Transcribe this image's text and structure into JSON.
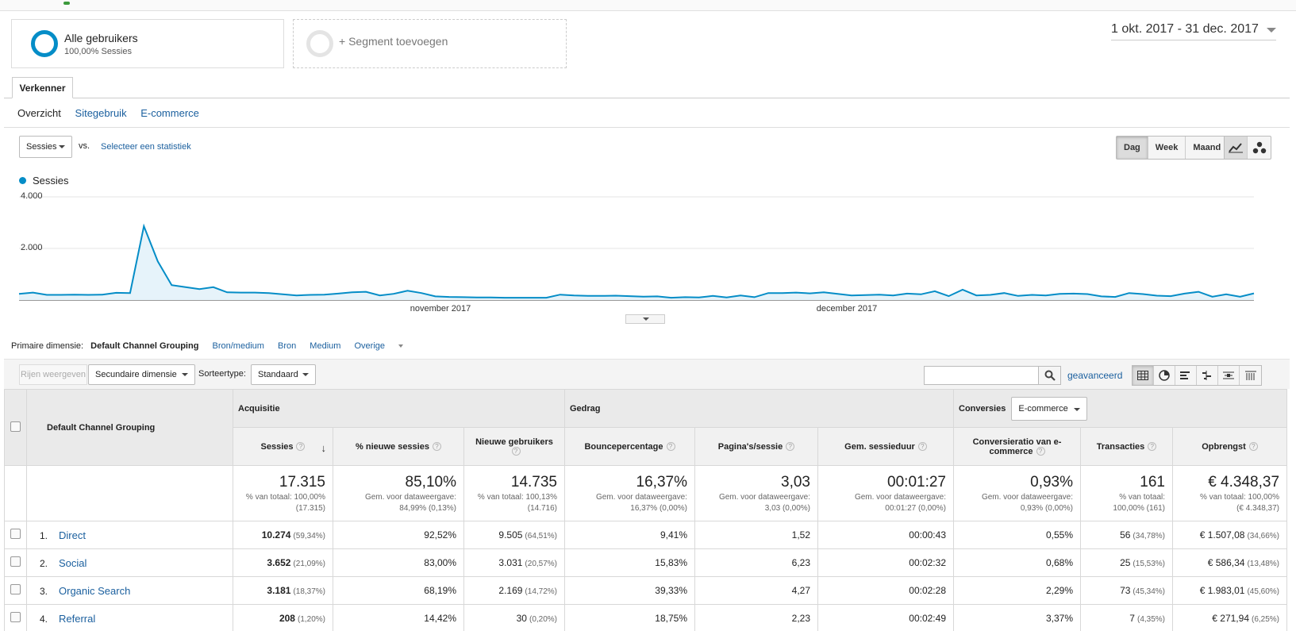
{
  "segments": {
    "current": {
      "title": "Alle gebruikers",
      "subtitle": "100,00% Sessies"
    },
    "add_label": "+ Segment toevoegen"
  },
  "date_range": "1 okt. 2017 - 31 dec. 2017",
  "tabs": {
    "explorer": "Verkenner",
    "subtabs": [
      "Overzicht",
      "Sitegebruik",
      "E-commerce"
    ]
  },
  "metric_picker": {
    "selected": "Sessies",
    "vs": "vs.",
    "second": "Selecteer een statistiek"
  },
  "granularity": [
    "Dag",
    "Week",
    "Maand"
  ],
  "chart_data": {
    "type": "area",
    "series": [
      {
        "name": "Sessies",
        "values": [
          240,
          290,
          200,
          200,
          210,
          200,
          210,
          280,
          270,
          2860,
          1500,
          580,
          500,
          420,
          500,
          300,
          290,
          290,
          270,
          220,
          180,
          200,
          210,
          250,
          300,
          320,
          180,
          240,
          360,
          270,
          140,
          120,
          110,
          100,
          100,
          90,
          90,
          90,
          90,
          210,
          180,
          160,
          160,
          170,
          150,
          130,
          140,
          90,
          110,
          100,
          160,
          100,
          180,
          110,
          270,
          270,
          290,
          260,
          300,
          240,
          180,
          190,
          210,
          180,
          250,
          220,
          340,
          150,
          400,
          180,
          200,
          270,
          160,
          200,
          180,
          240,
          250,
          230,
          140,
          120,
          270,
          230,
          170,
          150,
          250,
          320,
          130,
          220,
          130,
          260
        ]
      }
    ],
    "x_labels": [
      "november 2017",
      "december 2017"
    ],
    "y_ticks": [
      "4.000",
      "2.000"
    ],
    "ylim": [
      0,
      4000
    ]
  },
  "primary_dimension": {
    "label": "Primaire dimensie:",
    "options": [
      "Default Channel Grouping",
      "Bron/medium",
      "Bron",
      "Medium",
      "Overige"
    ]
  },
  "toolbar": {
    "show_rows": "Rijen weergeven",
    "secondary": "Secundaire dimensie",
    "sort_label": "Sorteertype:",
    "sort_value": "Standaard",
    "advanced": "geavanceerd"
  },
  "table": {
    "dim_header": "Default Channel Grouping",
    "groups": {
      "acq": "Acquisitie",
      "beh": "Gedrag",
      "conv": "Conversies",
      "conv_select": "E-commerce"
    },
    "columns": [
      "Sessies",
      "% nieuwe sessies",
      "Nieuwe gebruikers",
      "Bouncepercentage",
      "Pagina's/sessie",
      "Gem. sessieduur",
      "Conversieratio van e-commerce",
      "Transacties",
      "Opbrengst"
    ],
    "totals": [
      {
        "value": "17.315",
        "sub1": "% van totaal: 100,00%",
        "sub2": "(17.315)"
      },
      {
        "value": "85,10%",
        "sub1": "Gem. voor dataweergave:",
        "sub2": "84,99% (0,13%)"
      },
      {
        "value": "14.735",
        "sub1": "% van totaal: 100,13%",
        "sub2": "(14.716)"
      },
      {
        "value": "16,37%",
        "sub1": "Gem. voor dataweergave:",
        "sub2": "16,37% (0,00%)"
      },
      {
        "value": "3,03",
        "sub1": "Gem. voor dataweergave:",
        "sub2": "3,03 (0,00%)"
      },
      {
        "value": "00:01:27",
        "sub1": "Gem. voor dataweergave:",
        "sub2": "00:01:27 (0,00%)"
      },
      {
        "value": "0,93%",
        "sub1": "Gem. voor dataweergave:",
        "sub2": "0,93% (0,00%)"
      },
      {
        "value": "161",
        "sub1": "% van totaal:",
        "sub2": "100,00% (161)"
      },
      {
        "value": "€ 4.348,37",
        "sub1": "% van totaal: 100,00%",
        "sub2": "(€ 4.348,37)"
      }
    ],
    "rows": [
      {
        "idx": "1.",
        "name": "Direct",
        "sessions": "10.274",
        "sessions_pct": "(59,34%)",
        "new_sess": "92,52%",
        "new_users": "9.505",
        "new_users_pct": "(64,51%)",
        "bounce": "9,41%",
        "pps": "1,52",
        "dur": "00:00:43",
        "conv": "0,55%",
        "trans": "56",
        "trans_pct": "(34,78%)",
        "rev": "€ 1.507,08",
        "rev_pct": "(34,66%)"
      },
      {
        "idx": "2.",
        "name": "Social",
        "sessions": "3.652",
        "sessions_pct": "(21,09%)",
        "new_sess": "83,00%",
        "new_users": "3.031",
        "new_users_pct": "(20,57%)",
        "bounce": "15,83%",
        "pps": "6,23",
        "dur": "00:02:32",
        "conv": "0,68%",
        "trans": "25",
        "trans_pct": "(15,53%)",
        "rev": "€ 586,34",
        "rev_pct": "(13,48%)"
      },
      {
        "idx": "3.",
        "name": "Organic Search",
        "sessions": "3.181",
        "sessions_pct": "(18,37%)",
        "new_sess": "68,19%",
        "new_users": "2.169",
        "new_users_pct": "(14,72%)",
        "bounce": "39,33%",
        "pps": "4,27",
        "dur": "00:02:28",
        "conv": "2,29%",
        "trans": "73",
        "trans_pct": "(45,34%)",
        "rev": "€ 1.983,01",
        "rev_pct": "(45,60%)"
      },
      {
        "idx": "4.",
        "name": "Referral",
        "sessions": "208",
        "sessions_pct": "(1,20%)",
        "new_sess": "14,42%",
        "new_users": "30",
        "new_users_pct": "(0,20%)",
        "bounce": "18,75%",
        "pps": "2,23",
        "dur": "00:02:49",
        "conv": "3,37%",
        "trans": "7",
        "trans_pct": "(4,35%)",
        "rev": "€ 271,94",
        "rev_pct": "(6,25%)"
      }
    ]
  },
  "colors": {
    "accent": "#058dc7",
    "link": "#1a5f9e"
  }
}
